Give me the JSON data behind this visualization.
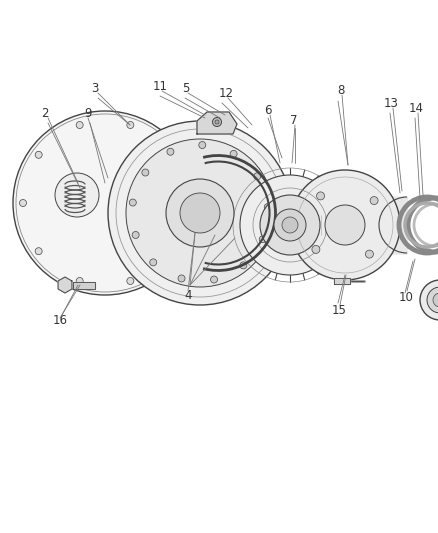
{
  "bg_color": "#ffffff",
  "line_color": "#444444",
  "label_color": "#333333",
  "label_fontsize": 8.5,
  "fig_width": 4.39,
  "fig_height": 5.33,
  "dpi": 100
}
